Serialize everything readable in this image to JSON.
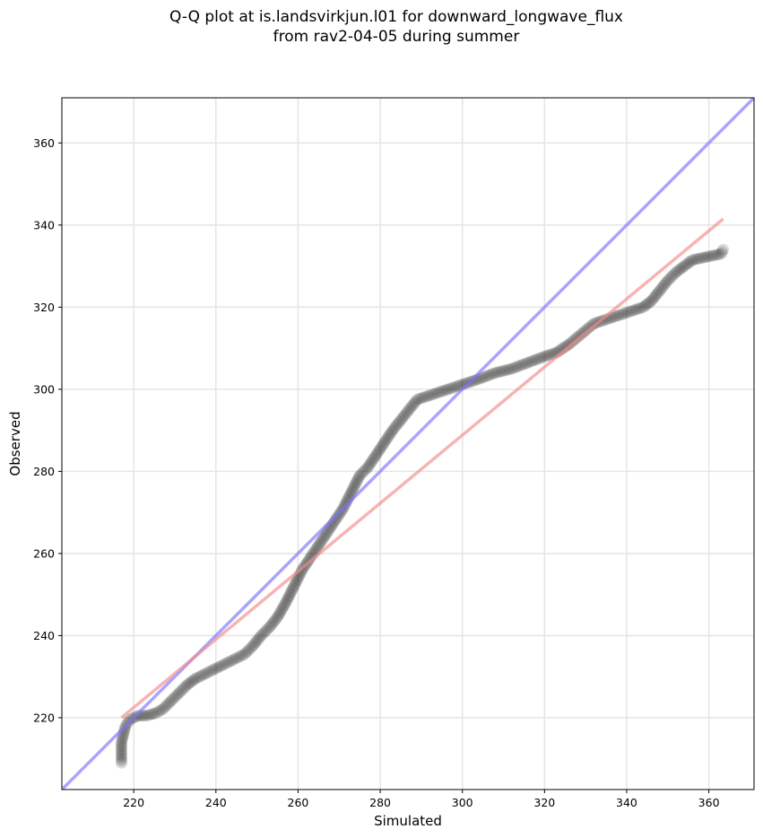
{
  "chart_data": {
    "type": "scatter",
    "title_lines": [
      "Q-Q plot at is.landsvirkjun.l01 for downward_longwave_flux",
      "from rav2-04-05 during summer"
    ],
    "xlabel": "Simulated",
    "ylabel": "Observed",
    "xlim": [
      202.5,
      371
    ],
    "ylim": [
      202.5,
      371
    ],
    "xticks": [
      220,
      240,
      260,
      280,
      300,
      320,
      340,
      360
    ],
    "yticks": [
      220,
      240,
      260,
      280,
      300,
      320,
      340,
      360
    ],
    "grid": true,
    "lines": [
      {
        "kind": "one-to-one",
        "color": "#7777ff",
        "points": [
          [
            202.5,
            202.5
          ],
          [
            371,
            371
          ]
        ]
      },
      {
        "kind": "regression",
        "color": "#f58a8a",
        "points": [
          [
            217,
            220
          ],
          [
            363.5,
            341.5
          ]
        ]
      }
    ],
    "quantile_curve": [
      [
        217,
        209
      ],
      [
        217,
        214
      ],
      [
        217.5,
        216
      ],
      [
        218,
        218
      ],
      [
        219,
        219.5
      ],
      [
        221,
        220.5
      ],
      [
        223,
        220.5
      ],
      [
        225,
        221
      ],
      [
        227,
        222
      ],
      [
        229,
        224
      ],
      [
        231,
        226
      ],
      [
        233,
        228
      ],
      [
        235,
        229.5
      ],
      [
        238,
        231
      ],
      [
        241,
        232.5
      ],
      [
        244,
        234
      ],
      [
        247,
        235.5
      ],
      [
        249,
        237.5
      ],
      [
        251,
        240
      ],
      [
        253,
        242
      ],
      [
        255,
        244.5
      ],
      [
        257,
        248
      ],
      [
        259,
        252
      ],
      [
        261,
        256
      ],
      [
        263,
        259
      ],
      [
        265,
        262
      ],
      [
        267,
        265
      ],
      [
        269,
        268
      ],
      [
        271,
        271
      ],
      [
        273,
        275
      ],
      [
        275,
        279
      ],
      [
        277,
        281
      ],
      [
        279,
        284
      ],
      [
        281,
        287
      ],
      [
        283,
        290
      ],
      [
        285,
        292.5
      ],
      [
        287,
        295
      ],
      [
        289,
        297.5
      ],
      [
        292,
        298.5
      ],
      [
        295,
        299.5
      ],
      [
        298,
        300.5
      ],
      [
        301,
        301.5
      ],
      [
        304,
        302.5
      ],
      [
        308,
        304
      ],
      [
        312,
        305
      ],
      [
        316,
        306.5
      ],
      [
        320,
        308
      ],
      [
        323,
        309
      ],
      [
        326,
        311
      ],
      [
        329,
        313.5
      ],
      [
        332,
        316
      ],
      [
        335,
        317
      ],
      [
        338,
        318
      ],
      [
        341,
        319
      ],
      [
        344,
        320
      ],
      [
        346,
        321.5
      ],
      [
        348,
        324
      ],
      [
        350,
        326.5
      ],
      [
        352,
        328.5
      ],
      [
        354,
        330
      ],
      [
        356,
        331.5
      ],
      [
        363,
        333
      ],
      [
        363.5,
        334
      ]
    ],
    "point_color": "#000000"
  }
}
